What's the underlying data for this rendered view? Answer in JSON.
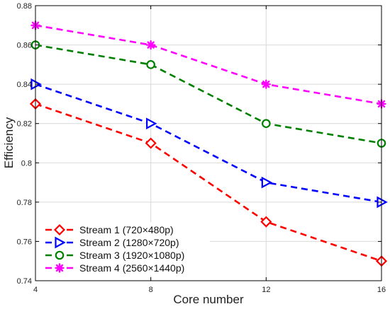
{
  "chart_data": {
    "type": "line",
    "title": "",
    "xlabel": "Core number",
    "ylabel": "Efficiency",
    "x": [
      4,
      8,
      12,
      16
    ],
    "xlim": [
      4,
      16
    ],
    "ylim": [
      0.74,
      0.88
    ],
    "xticks": [
      4,
      8,
      12,
      16
    ],
    "xtick_labels": [
      "4",
      "8",
      "12",
      "16"
    ],
    "yticks": [
      0.74,
      0.76,
      0.78,
      0.8,
      0.82,
      0.84,
      0.86,
      0.88
    ],
    "ytick_labels": [
      "0.74",
      "0.76",
      "0.78",
      "0.8",
      "0.82",
      "0.84",
      "0.86",
      "0.88"
    ],
    "grid": true,
    "legend_position": "bottom-left",
    "series": [
      {
        "name": "Stream 1 (720×480p)",
        "values": [
          0.83,
          0.81,
          0.77,
          0.75
        ],
        "color": "#ff0000",
        "marker": "diamond"
      },
      {
        "name": "Stream 2 (1280×720p)",
        "values": [
          0.84,
          0.82,
          0.79,
          0.78
        ],
        "color": "#0000ff",
        "marker": "triangle-right"
      },
      {
        "name": "Stream 3 (1920×1080p)",
        "values": [
          0.86,
          0.85,
          0.82,
          0.81
        ],
        "color": "#008000",
        "marker": "circle"
      },
      {
        "name": "Stream 4 (2560×1440p)",
        "values": [
          0.87,
          0.86,
          0.84,
          0.83
        ],
        "color": "#ff00ff",
        "marker": "asterisk"
      }
    ]
  }
}
